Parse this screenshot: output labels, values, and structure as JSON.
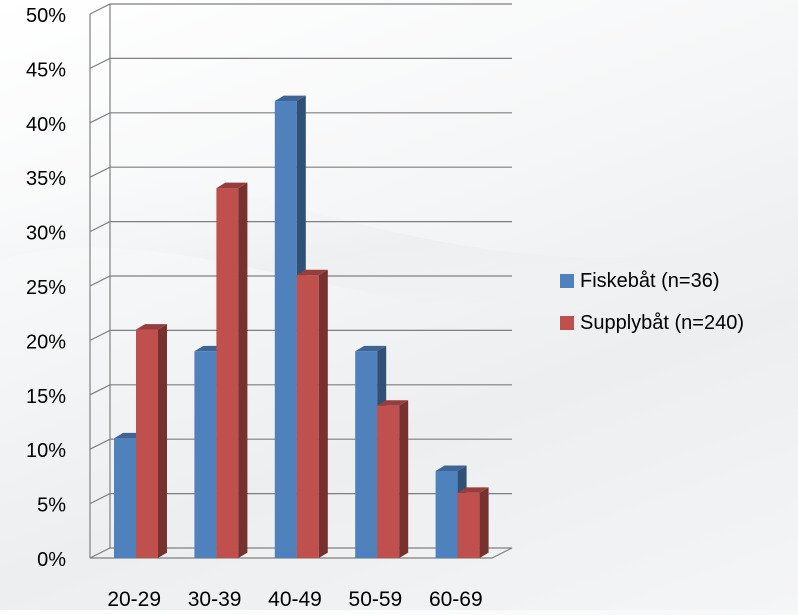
{
  "chart_data": {
    "type": "bar",
    "categories": [
      "20-29",
      "30-39",
      "40-49",
      "50-59",
      "60-69"
    ],
    "series": [
      {
        "name": "Fiskebåt (n=36)",
        "values": [
          11,
          19,
          42,
          19,
          8
        ],
        "color": "#4f81bd"
      },
      {
        "name": "Supplybåt (n=240)",
        "values": [
          21,
          34,
          26,
          14,
          6
        ],
        "color": "#c0504d"
      }
    ],
    "ylim": [
      0,
      50
    ],
    "yticks": [
      "0%",
      "5%",
      "10%",
      "15%",
      "20%",
      "25%",
      "30%",
      "35%",
      "40%",
      "45%",
      "50%"
    ],
    "grid": true,
    "legend_position": "right",
    "style": "3d-clustered-column"
  }
}
